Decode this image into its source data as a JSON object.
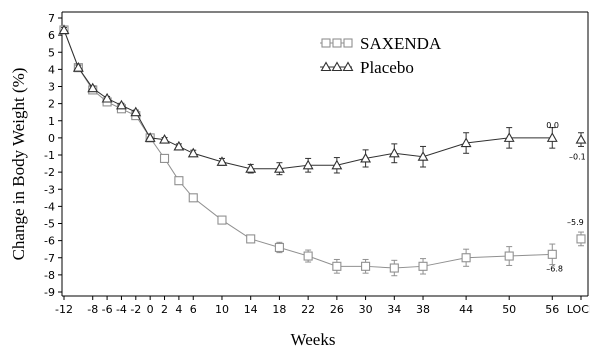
{
  "chart_data": {
    "type": "line",
    "xlabel": "Weeks",
    "ylabel": "Change in Body Weight (%)",
    "ylim": [
      -9,
      7
    ],
    "x_ticks": [
      {
        "pos": -12,
        "label": "-12"
      },
      {
        "pos": -8,
        "label": "-8"
      },
      {
        "pos": -6,
        "label": "-6"
      },
      {
        "pos": -4,
        "label": "-4"
      },
      {
        "pos": -2,
        "label": "-2"
      },
      {
        "pos": 0,
        "label": "0"
      },
      {
        "pos": 2,
        "label": "2"
      },
      {
        "pos": 4,
        "label": "4"
      },
      {
        "pos": 6,
        "label": "6"
      },
      {
        "pos": 10,
        "label": "10"
      },
      {
        "pos": 14,
        "label": "14"
      },
      {
        "pos": 18,
        "label": "18"
      },
      {
        "pos": 22,
        "label": "22"
      },
      {
        "pos": 26,
        "label": "26"
      },
      {
        "pos": 30,
        "label": "30"
      },
      {
        "pos": 34,
        "label": "34"
      },
      {
        "pos": 38,
        "label": "38"
      },
      {
        "pos": 44,
        "label": "44"
      },
      {
        "pos": 50,
        "label": "50"
      },
      {
        "pos": 56,
        "label": "56"
      },
      {
        "pos": 60,
        "label": "LOCF"
      }
    ],
    "y_ticks": [
      7,
      6,
      5,
      4,
      3,
      2,
      1,
      0,
      -1,
      -2,
      -3,
      -4,
      -5,
      -6,
      -7,
      -8,
      -9
    ],
    "legend": [
      {
        "name": "SAXENDA",
        "marker": "square",
        "color": "#909090"
      },
      {
        "name": "Placebo",
        "marker": "triangle",
        "color": "#303030"
      }
    ],
    "series": [
      {
        "name": "SAXENDA",
        "marker": "square",
        "color": "#909090",
        "points": [
          {
            "x": -12,
            "y": 6.3,
            "err": 0.15
          },
          {
            "x": -10,
            "y": 4.1,
            "err": 0.15
          },
          {
            "x": -8,
            "y": 2.8,
            "err": 0.12
          },
          {
            "x": -6,
            "y": 2.1,
            "err": 0.12
          },
          {
            "x": -4,
            "y": 1.7,
            "err": 0.12
          },
          {
            "x": -2,
            "y": 1.3,
            "err": 0.12
          },
          {
            "x": 0,
            "y": 0.0,
            "err": 0.05
          },
          {
            "x": 2,
            "y": -1.2,
            "err": 0.12
          },
          {
            "x": 4,
            "y": -2.5,
            "err": 0.15
          },
          {
            "x": 6,
            "y": -3.5,
            "err": 0.18
          },
          {
            "x": 10,
            "y": -4.8,
            "err": 0.2
          },
          {
            "x": 14,
            "y": -5.9,
            "err": 0.22
          },
          {
            "x": 18,
            "y": -6.4,
            "err": 0.3
          },
          {
            "x": 22,
            "y": -6.9,
            "err": 0.35
          },
          {
            "x": 26,
            "y": -7.5,
            "err": 0.4
          },
          {
            "x": 30,
            "y": -7.5,
            "err": 0.4
          },
          {
            "x": 34,
            "y": -7.6,
            "err": 0.45
          },
          {
            "x": 38,
            "y": -7.5,
            "err": 0.45
          },
          {
            "x": 44,
            "y": -7.0,
            "err": 0.5
          },
          {
            "x": 50,
            "y": -6.9,
            "err": 0.55
          },
          {
            "x": 56,
            "y": -6.8,
            "err": 0.6
          }
        ],
        "locf": {
          "x": 60,
          "y": -5.9,
          "err": 0.4
        }
      },
      {
        "name": "Placebo",
        "marker": "triangle",
        "color": "#303030",
        "points": [
          {
            "x": -12,
            "y": 6.3,
            "err": 0.15
          },
          {
            "x": -10,
            "y": 4.1,
            "err": 0.15
          },
          {
            "x": -8,
            "y": 2.9,
            "err": 0.12
          },
          {
            "x": -6,
            "y": 2.3,
            "err": 0.12
          },
          {
            "x": -4,
            "y": 1.9,
            "err": 0.12
          },
          {
            "x": -2,
            "y": 1.5,
            "err": 0.12
          },
          {
            "x": 0,
            "y": 0.0,
            "err": 0.05
          },
          {
            "x": 2,
            "y": -0.1,
            "err": 0.12
          },
          {
            "x": 4,
            "y": -0.5,
            "err": 0.15
          },
          {
            "x": 6,
            "y": -0.9,
            "err": 0.18
          },
          {
            "x": 10,
            "y": -1.4,
            "err": 0.2
          },
          {
            "x": 14,
            "y": -1.8,
            "err": 0.25
          },
          {
            "x": 18,
            "y": -1.8,
            "err": 0.35
          },
          {
            "x": 22,
            "y": -1.6,
            "err": 0.4
          },
          {
            "x": 26,
            "y": -1.6,
            "err": 0.45
          },
          {
            "x": 30,
            "y": -1.2,
            "err": 0.5
          },
          {
            "x": 34,
            "y": -0.9,
            "err": 0.55
          },
          {
            "x": 38,
            "y": -1.1,
            "err": 0.6
          },
          {
            "x": 44,
            "y": -0.3,
            "err": 0.6
          },
          {
            "x": 50,
            "y": 0.0,
            "err": 0.6
          },
          {
            "x": 56,
            "y": 0.0,
            "err": 0.6
          }
        ],
        "locf": {
          "x": 60,
          "y": -0.1,
          "err": 0.4
        }
      }
    ],
    "annotations": [
      {
        "text": "0.0",
        "x": 56,
        "y": 0.0
      },
      {
        "text": "–0.1",
        "x": 60,
        "y": -0.1
      },
      {
        "text": "–5.9",
        "x": 60,
        "y": -5.9
      },
      {
        "text": "–6.8",
        "x": 56,
        "y": -6.8
      }
    ]
  }
}
